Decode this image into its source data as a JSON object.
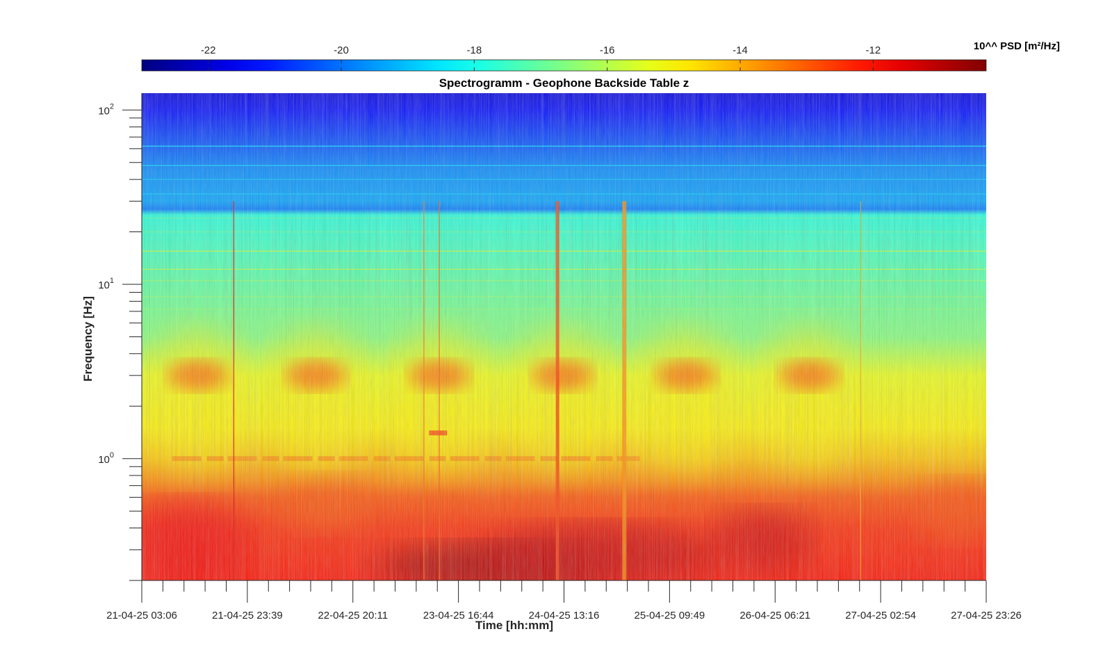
{
  "chart_data": {
    "type": "heatmap",
    "title": "Spectrogramm - Geophone Backside Table z",
    "xlabel": "Time [hh:mm]",
    "ylabel": "Frequency [Hz]",
    "x_ticks": [
      "21-04-25 03:06",
      "21-04-25 23:39",
      "22-04-25 20:11",
      "23-04-25 16:44",
      "24-04-25 13:16",
      "25-04-25 09:49",
      "26-04-25 06:21",
      "27-04-25 02:54",
      "27-04-25 23:26"
    ],
    "x_range": [
      "21-04-25 03:06",
      "27-04-25 23:26"
    ],
    "y_scale": "log",
    "ylim": [
      0.2,
      125
    ],
    "y_tick_labels": [
      {
        "base": "10",
        "exp": "2",
        "value": 100
      },
      {
        "base": "10",
        "exp": "1",
        "value": 10
      },
      {
        "base": "10",
        "exp": "0",
        "value": 1
      }
    ],
    "colorbar": {
      "label": "10^^ PSD [m²/Hz]",
      "range": [
        -23,
        -10.3
      ],
      "ticks": [
        "-22",
        "-20",
        "-18",
        "-16",
        "-14",
        "-12"
      ],
      "tick_values": [
        -22,
        -20,
        -18,
        -16,
        -14,
        -12
      ],
      "colormap": "jet",
      "placement": "top"
    },
    "features": {
      "day_bursts_center_hz": 3,
      "day_burst_times": [
        "21-04-25 14:00",
        "22-04-25 13:00",
        "23-04-25 13:00",
        "24-04-25 13:00",
        "25-04-25 13:00",
        "26-04-25 13:00"
      ],
      "microseism_band_hz": [
        0.2,
        0.7
      ],
      "persistent_line_hz": 1.0,
      "band_edge_hz": 26
    }
  }
}
